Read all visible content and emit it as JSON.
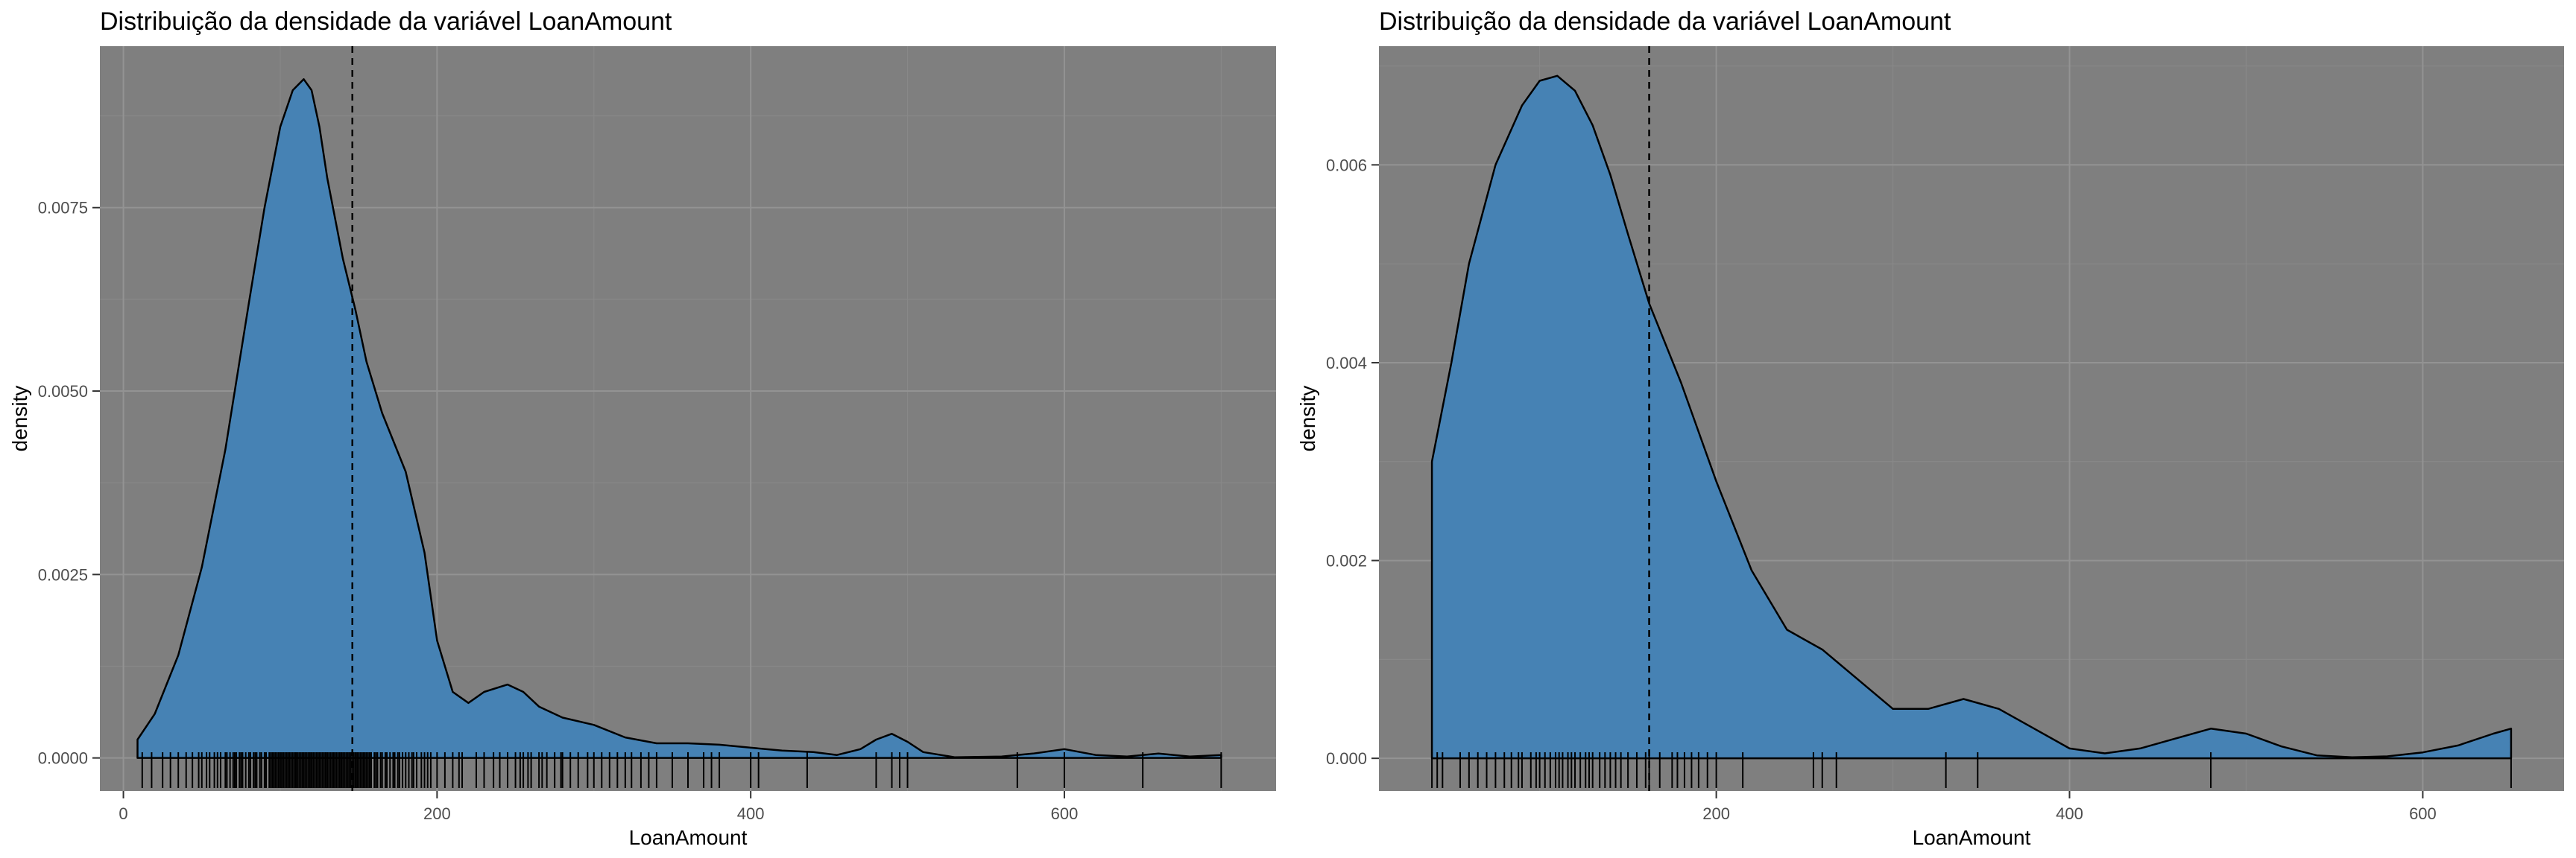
{
  "chart_data": [
    {
      "type": "area",
      "title": "Distribuição da densidade da variável LoanAmount",
      "xlabel": "LoanAmount",
      "ylabel": "density",
      "xlim": [
        -15,
        735
      ],
      "ylim": [
        -0.00045,
        0.0097
      ],
      "x_ticks": [
        0,
        200,
        400,
        600
      ],
      "x_tick_labels": [
        "0",
        "200",
        "400",
        "600"
      ],
      "y_ticks": [
        0,
        0.0025,
        0.005,
        0.0075
      ],
      "y_tick_labels": [
        "0.0000",
        "0.0025",
        "0.0050",
        "0.0075"
      ],
      "grid": true,
      "legend": "none",
      "fill_color": "#4682b4",
      "panel_background": "#7f7f7f",
      "mean_line_x": 146,
      "density_curve": {
        "x": [
          9,
          20,
          35,
          50,
          65,
          80,
          90,
          100,
          108,
          115,
          120,
          125,
          130,
          140,
          148,
          155,
          165,
          180,
          192,
          200,
          210,
          220,
          230,
          245,
          255,
          265,
          280,
          300,
          320,
          340,
          360,
          380,
          400,
          420,
          440,
          455,
          470,
          480,
          490,
          500,
          510,
          530,
          560,
          580,
          600,
          620,
          640,
          660,
          680,
          700
        ],
        "y": [
          0.00025,
          0.0006,
          0.0014,
          0.0026,
          0.0042,
          0.0062,
          0.0075,
          0.0086,
          0.0091,
          0.00925,
          0.0091,
          0.0086,
          0.0079,
          0.0068,
          0.0061,
          0.0054,
          0.0047,
          0.0039,
          0.0028,
          0.0016,
          0.0009,
          0.00075,
          0.0009,
          0.001,
          0.0009,
          0.0007,
          0.00055,
          0.00045,
          0.00028,
          0.0002,
          0.0002,
          0.00018,
          0.00014,
          0.0001,
          8e-05,
          4e-05,
          0.00012,
          0.00025,
          0.00033,
          0.00022,
          8e-05,
          1e-05,
          2e-05,
          6e-05,
          0.00012,
          4e-05,
          2e-05,
          6e-05,
          2e-05,
          4e-05
        ]
      },
      "rug_x": [
        12,
        18,
        25,
        30,
        35,
        40,
        44,
        48,
        50,
        53,
        55,
        58,
        60,
        62,
        65,
        66,
        68,
        70,
        71,
        72,
        74,
        75,
        76,
        78,
        80,
        81,
        83,
        84,
        85,
        87,
        88,
        90,
        91,
        93,
        94,
        95,
        96,
        97,
        98,
        99,
        100,
        101,
        102,
        103,
        104,
        105,
        106,
        107,
        108,
        109,
        110,
        111,
        112,
        113,
        114,
        115,
        116,
        117,
        118,
        119,
        120,
        121,
        122,
        123,
        124,
        125,
        126,
        127,
        128,
        129,
        130,
        131,
        132,
        133,
        134,
        135,
        136,
        137,
        138,
        139,
        140,
        141,
        142,
        143,
        144,
        145,
        146,
        147,
        148,
        149,
        150,
        151,
        152,
        153,
        154,
        155,
        156,
        157,
        158,
        160,
        161,
        162,
        164,
        165,
        167,
        168,
        170,
        172,
        173,
        175,
        176,
        178,
        180,
        182,
        184,
        185,
        187,
        190,
        192,
        194,
        196,
        200,
        205,
        210,
        214,
        216,
        225,
        230,
        236,
        240,
        245,
        250,
        253,
        255,
        258,
        260,
        265,
        267,
        270,
        275,
        279,
        280,
        285,
        290,
        296,
        300,
        305,
        310,
        315,
        320,
        324,
        330,
        335,
        340,
        350,
        360,
        370,
        375,
        380,
        400,
        405,
        436,
        480,
        490,
        495,
        500,
        570,
        600,
        650,
        700
      ]
    },
    {
      "type": "area",
      "title": "Distribuição da densidade da variável LoanAmount",
      "xlabel": "LoanAmount",
      "ylabel": "density",
      "xlim": [
        9,
        680
      ],
      "ylim": [
        -0.00033,
        0.0072
      ],
      "x_ticks": [
        200,
        400,
        600
      ],
      "x_tick_labels": [
        "200",
        "400",
        "600"
      ],
      "y_ticks": [
        0,
        0.002,
        0.004,
        0.006
      ],
      "y_tick_labels": [
        "0.000",
        "0.002",
        "0.004",
        "0.006"
      ],
      "grid": true,
      "legend": "none",
      "fill_color": "#4682b4",
      "panel_background": "#7f7f7f",
      "mean_line_x": 162,
      "density_curve": {
        "x": [
          39,
          50,
          60,
          75,
          90,
          100,
          110,
          120,
          130,
          140,
          150,
          162,
          180,
          200,
          220,
          240,
          260,
          280,
          300,
          320,
          340,
          360,
          380,
          400,
          420,
          440,
          460,
          480,
          500,
          520,
          540,
          560,
          580,
          600,
          620,
          640,
          650
        ],
        "y": [
          0.003,
          0.004,
          0.005,
          0.006,
          0.0066,
          0.00685,
          0.0069,
          0.00675,
          0.0064,
          0.0059,
          0.0053,
          0.0046,
          0.0038,
          0.0028,
          0.0019,
          0.0013,
          0.0011,
          0.0008,
          0.0005,
          0.0005,
          0.0006,
          0.0005,
          0.0003,
          0.0001,
          5e-05,
          0.0001,
          0.0002,
          0.0003,
          0.00025,
          0.00012,
          3e-05,
          1e-05,
          2e-05,
          6e-05,
          0.00013,
          0.00025,
          0.0003
        ]
      },
      "rug_x": [
        39,
        42,
        45,
        55,
        60,
        65,
        70,
        75,
        80,
        84,
        88,
        90,
        95,
        98,
        100,
        103,
        106,
        109,
        111,
        113,
        116,
        118,
        120,
        123,
        126,
        128,
        130,
        134,
        137,
        140,
        143,
        146,
        150,
        155,
        160,
        162,
        168,
        175,
        178,
        182,
        186,
        190,
        195,
        200,
        215,
        255,
        260,
        268,
        330,
        348,
        480,
        650
      ]
    }
  ]
}
